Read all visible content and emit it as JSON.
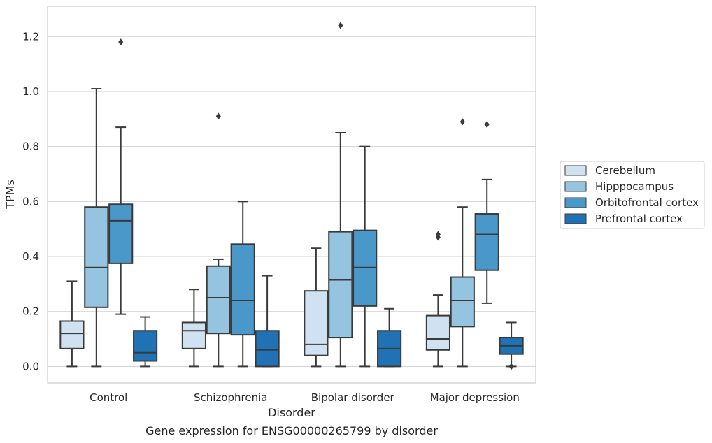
{
  "caption": "Gene expression for ENSG00000265799 by disorder",
  "chart_data": {
    "type": "box",
    "xlabel": "Disorder",
    "ylabel": "TPMs",
    "ylim": [
      -0.06,
      1.31
    ],
    "yticks": [
      0.0,
      0.2,
      0.4,
      0.6,
      0.8,
      1.0,
      1.2
    ],
    "ytick_labels": [
      "0.0",
      "0.2",
      "0.4",
      "0.6",
      "0.8",
      "1.0",
      "1.2"
    ],
    "grid": "horizontal",
    "legend_position": "right",
    "categories": [
      "Control",
      "Schizophrenia",
      "Bipolar disorder",
      "Major depression"
    ],
    "series": [
      {
        "name": "Cerebellum",
        "color": "#d0e1f2",
        "boxes": [
          {
            "whislo": 0.0,
            "q1": 0.065,
            "med": 0.12,
            "q3": 0.165,
            "whishi": 0.31,
            "fliers": []
          },
          {
            "whislo": 0.0,
            "q1": 0.065,
            "med": 0.13,
            "q3": 0.16,
            "whishi": 0.28,
            "fliers": []
          },
          {
            "whislo": 0.0,
            "q1": 0.04,
            "med": 0.08,
            "q3": 0.275,
            "whishi": 0.43,
            "fliers": []
          },
          {
            "whislo": 0.0,
            "q1": 0.06,
            "med": 0.1,
            "q3": 0.185,
            "whishi": 0.26,
            "fliers": [
              0.47,
              0.48
            ]
          }
        ]
      },
      {
        "name": "Hipppocampus",
        "color": "#94c4df",
        "boxes": [
          {
            "whislo": 0.0,
            "q1": 0.215,
            "med": 0.36,
            "q3": 0.58,
            "whishi": 1.01,
            "fliers": []
          },
          {
            "whislo": 0.0,
            "q1": 0.12,
            "med": 0.25,
            "q3": 0.365,
            "whishi": 0.39,
            "fliers": [
              0.91
            ]
          },
          {
            "whislo": 0.0,
            "q1": 0.105,
            "med": 0.315,
            "q3": 0.49,
            "whishi": 0.85,
            "fliers": [
              1.24
            ]
          },
          {
            "whislo": 0.0,
            "q1": 0.145,
            "med": 0.24,
            "q3": 0.325,
            "whishi": 0.58,
            "fliers": [
              0.89
            ]
          }
        ]
      },
      {
        "name": "Orbitofrontal cortex",
        "color": "#4a98c9",
        "boxes": [
          {
            "whislo": 0.19,
            "q1": 0.375,
            "med": 0.53,
            "q3": 0.59,
            "whishi": 0.87,
            "fliers": [
              1.18
            ]
          },
          {
            "whislo": 0.0,
            "q1": 0.115,
            "med": 0.24,
            "q3": 0.445,
            "whishi": 0.6,
            "fliers": []
          },
          {
            "whislo": 0.0,
            "q1": 0.22,
            "med": 0.36,
            "q3": 0.495,
            "whishi": 0.8,
            "fliers": []
          },
          {
            "whislo": 0.23,
            "q1": 0.35,
            "med": 0.48,
            "q3": 0.555,
            "whishi": 0.68,
            "fliers": [
              0.88
            ]
          }
        ]
      },
      {
        "name": "Prefrontal cortex",
        "color": "#2171b5",
        "boxes": [
          {
            "whislo": 0.0,
            "q1": 0.02,
            "med": 0.05,
            "q3": 0.13,
            "whishi": 0.18,
            "fliers": []
          },
          {
            "whislo": 0.0,
            "q1": 0.0,
            "med": 0.06,
            "q3": 0.13,
            "whishi": 0.33,
            "fliers": []
          },
          {
            "whislo": 0.0,
            "q1": 0.0,
            "med": 0.065,
            "q3": 0.13,
            "whishi": 0.21,
            "fliers": []
          },
          {
            "whislo": 0.0,
            "q1": 0.045,
            "med": 0.075,
            "q3": 0.105,
            "whishi": 0.16,
            "fliers": [
              0.0
            ]
          }
        ]
      }
    ]
  }
}
